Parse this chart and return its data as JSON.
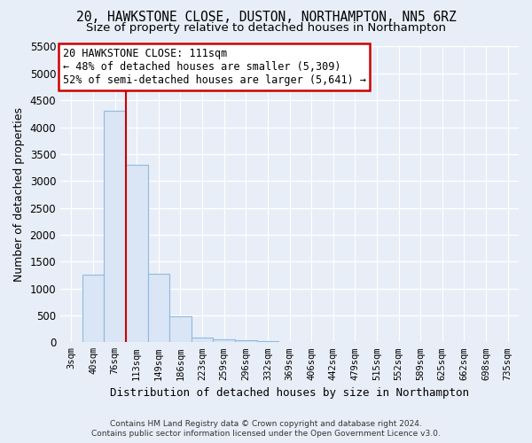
{
  "title_line1": "20, HAWKSTONE CLOSE, DUSTON, NORTHAMPTON, NN5 6RZ",
  "title_line2": "Size of property relative to detached houses in Northampton",
  "xlabel": "Distribution of detached houses by size in Northampton",
  "ylabel": "Number of detached properties",
  "footer_line1": "Contains HM Land Registry data © Crown copyright and database right 2024.",
  "footer_line2": "Contains public sector information licensed under the Open Government Licence v3.0.",
  "bar_labels": [
    "3sqm",
    "40sqm",
    "76sqm",
    "113sqm",
    "149sqm",
    "186sqm",
    "223sqm",
    "259sqm",
    "296sqm",
    "332sqm",
    "369sqm",
    "406sqm",
    "442sqm",
    "479sqm",
    "515sqm",
    "552sqm",
    "589sqm",
    "625sqm",
    "662sqm",
    "698sqm",
    "735sqm"
  ],
  "bar_values": [
    0,
    1260,
    4300,
    3300,
    1280,
    480,
    80,
    50,
    40,
    20,
    10,
    5,
    3,
    2,
    1,
    1,
    1,
    0,
    0,
    0,
    0
  ],
  "bar_color": "#dae6f5",
  "bar_edge_color": "#90b8e0",
  "vline_color": "#cc0000",
  "vline_x": 2.5,
  "annotation_text_line1": "20 HAWKSTONE CLOSE: 111sqm",
  "annotation_text_line2": "← 48% of detached houses are smaller (5,309)",
  "annotation_text_line3": "52% of semi-detached houses are larger (5,641) →",
  "annotation_box_color": "#cc0000",
  "ylim": [
    0,
    5500
  ],
  "yticks": [
    0,
    500,
    1000,
    1500,
    2000,
    2500,
    3000,
    3500,
    4000,
    4500,
    5000,
    5500
  ],
  "background_color": "#e8eef7",
  "axes_background_color": "#e8eef7",
  "grid_color": "#ffffff",
  "title_fontsize": 10.5,
  "subtitle_fontsize": 9.5,
  "ylabel_fontsize": 9,
  "xlabel_fontsize": 9,
  "annotation_fontsize": 8.5
}
